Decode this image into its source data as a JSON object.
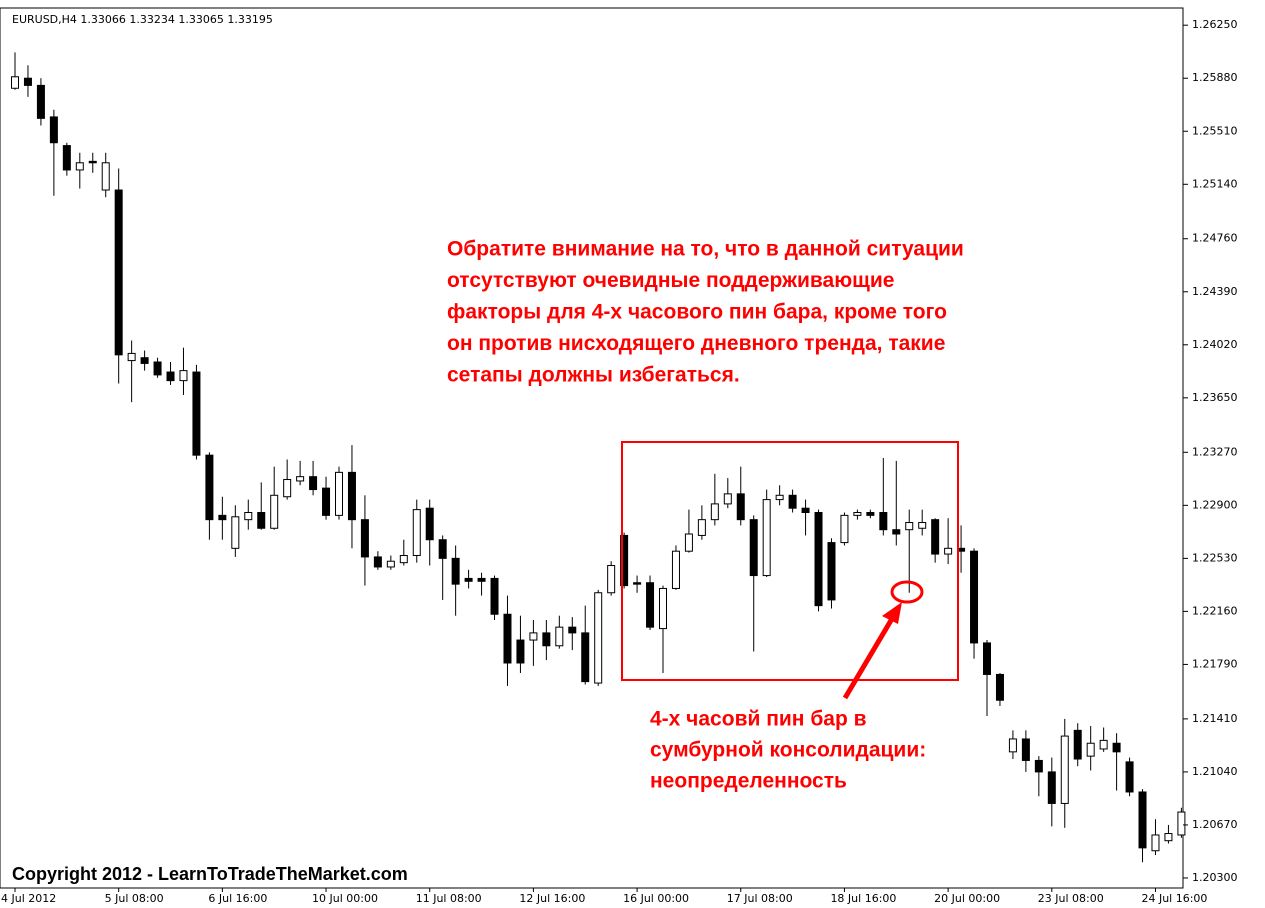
{
  "chart_data": {
    "type": "candlestick",
    "title": "EURUSD,H4  1.33066 1.33234 1.33065 1.33195",
    "categories": [
      "4 Jul 2012",
      null,
      null,
      null,
      null,
      null,
      null,
      null,
      "5 Jul 08:00",
      null,
      null,
      null,
      null,
      null,
      null,
      null,
      "6 Jul 16:00",
      null,
      null,
      null,
      null,
      null,
      null,
      null,
      "10 Jul 00:00",
      null,
      null,
      null,
      null,
      null,
      null,
      null,
      "11 Jul 08:00",
      null,
      null,
      null,
      null,
      null,
      null,
      null,
      "12 Jul 16:00",
      null,
      null,
      null,
      null,
      null,
      null,
      null,
      "16 Jul 00:00",
      null,
      null,
      null,
      null,
      null,
      null,
      null,
      "17 Jul 08:00",
      null,
      null,
      null,
      null,
      null,
      null,
      null,
      "18 Jul 16:00",
      null,
      null,
      null,
      null,
      null,
      null,
      null,
      "20 Jul 00:00",
      null,
      null,
      null,
      null,
      null,
      null,
      null,
      "23 Jul 08:00",
      null,
      null,
      null,
      null,
      null,
      null,
      null,
      "24 Jul 16:00",
      null,
      null
    ],
    "open": [
      1.2581,
      1.2588,
      1.2583,
      1.2561,
      1.2541,
      1.2524,
      1.253,
      1.251,
      1.251,
      1.2391,
      1.2393,
      1.239,
      1.2383,
      1.2377,
      1.2383,
      1.2325,
      1.2283,
      1.226,
      1.228,
      1.2285,
      1.2274,
      1.2296,
      1.2307,
      1.231,
      1.2302,
      1.2283,
      1.2313,
      1.228,
      1.2254,
      1.2247,
      1.225,
      1.2255,
      1.2288,
      1.2266,
      1.2253,
      1.2239,
      1.2239,
      1.2239,
      1.2214,
      1.2196,
      1.2196,
      1.2201,
      1.2192,
      1.2205,
      1.2201,
      1.2166,
      1.2229,
      1.2269,
      1.2236,
      1.2236,
      1.2204,
      1.2232,
      1.2258,
      1.2269,
      1.228,
      1.2291,
      1.2298,
      1.228,
      1.2241,
      1.2294,
      1.2297,
      1.2288,
      1.2285,
      1.2264,
      1.2264,
      1.2283,
      1.2285,
      1.2285,
      1.2273,
      1.2273,
      1.2274,
      1.228,
      1.2256,
      1.226,
      1.2258,
      1.2194,
      1.2172,
      1.2118,
      1.2127,
      1.2112,
      1.2104,
      1.2082,
      1.2133,
      1.2115,
      1.212,
      1.2124,
      1.2111,
      1.209,
      1.2049,
      1.2056,
      1.206
    ],
    "high": [
      1.2606,
      1.2597,
      1.2588,
      1.2566,
      1.2543,
      1.2536,
      1.2536,
      1.2536,
      1.2525,
      1.2405,
      1.2398,
      1.2393,
      1.239,
      1.24,
      1.2388,
      1.2327,
      1.2296,
      1.229,
      1.2294,
      1.2306,
      1.2317,
      1.2322,
      1.2321,
      1.2321,
      1.231,
      1.2317,
      1.2332,
      1.2297,
      1.2258,
      1.2255,
      1.2266,
      1.2294,
      1.2294,
      1.2269,
      1.2262,
      1.2245,
      1.2243,
      1.2241,
      1.2227,
      1.2213,
      1.221,
      1.221,
      1.2213,
      1.2212,
      1.222,
      1.2231,
      1.2251,
      1.2271,
      1.2241,
      1.2241,
      1.2234,
      1.2262,
      1.2287,
      1.229,
      1.2312,
      1.2309,
      1.2317,
      1.2283,
      1.2301,
      1.2304,
      1.2301,
      1.2294,
      1.2287,
      1.2267,
      1.2285,
      1.2287,
      1.2287,
      1.2323,
      1.2321,
      1.2287,
      1.2287,
      1.2281,
      1.2281,
      1.2276,
      1.226,
      1.2196,
      1.2173,
      1.2133,
      1.2133,
      1.2115,
      1.2114,
      1.2141,
      1.2138,
      1.2136,
      1.2135,
      1.2131,
      1.2114,
      1.2092,
      1.2071,
      1.2067,
      1.2079
    ],
    "low": [
      1.258,
      1.2575,
      1.2555,
      1.2506,
      1.252,
      1.2511,
      1.2522,
      1.2505,
      1.2375,
      1.2362,
      1.2384,
      1.2379,
      1.2374,
      1.2367,
      1.2322,
      1.2266,
      1.2266,
      1.2254,
      1.2273,
      1.2273,
      1.2273,
      1.2294,
      1.2304,
      1.2297,
      1.228,
      1.228,
      1.226,
      1.2234,
      1.2245,
      1.2245,
      1.2248,
      1.225,
      1.2248,
      1.2224,
      1.2213,
      1.2232,
      1.2227,
      1.221,
      1.2164,
      1.2173,
      1.2178,
      1.2182,
      1.219,
      1.2189,
      1.2165,
      1.2164,
      1.2227,
      1.2232,
      1.2229,
      1.2203,
      1.2173,
      1.2231,
      1.2257,
      1.2266,
      1.2276,
      1.2288,
      1.2276,
      1.2188,
      1.224,
      1.229,
      1.2285,
      1.2269,
      1.2216,
      1.2218,
      1.2262,
      1.228,
      1.2281,
      1.2269,
      1.2262,
      1.2229,
      1.2269,
      1.225,
      1.2249,
      1.2243,
      1.2183,
      1.2143,
      1.215,
      1.2113,
      1.2104,
      1.2087,
      1.2066,
      1.2065,
      1.2108,
      1.2105,
      1.2118,
      1.2091,
      1.2087,
      1.2041,
      1.2046,
      1.2054,
      1.2058
    ],
    "close": [
      1.2589,
      1.2583,
      1.256,
      1.2543,
      1.2524,
      1.2529,
      1.2529,
      1.2529,
      1.2395,
      1.2396,
      1.2389,
      1.2381,
      1.2377,
      1.2384,
      1.2325,
      1.228,
      1.228,
      1.2282,
      1.2285,
      1.2274,
      1.2297,
      1.2308,
      1.231,
      1.2301,
      1.2283,
      1.2313,
      1.228,
      1.2254,
      1.2247,
      1.2251,
      1.2255,
      1.2287,
      1.2266,
      1.2253,
      1.2235,
      1.2237,
      1.2237,
      1.2214,
      1.218,
      1.218,
      1.2201,
      1.2192,
      1.2205,
      1.2201,
      1.2167,
      1.2229,
      1.2248,
      1.2234,
      1.2235,
      1.2205,
      1.2232,
      1.2258,
      1.227,
      1.228,
      1.2291,
      1.2298,
      1.228,
      1.2241,
      1.2294,
      1.2297,
      1.2288,
      1.2285,
      1.222,
      1.2224,
      1.2283,
      1.2285,
      1.2283,
      1.2273,
      1.227,
      1.2278,
      1.2278,
      1.2256,
      1.226,
      1.2258,
      1.2194,
      1.2172,
      1.2154,
      1.2127,
      1.2112,
      1.2104,
      1.2082,
      1.2129,
      1.2113,
      1.2124,
      1.2126,
      1.2118,
      1.209,
      1.2051,
      1.206,
      1.2061,
      1.2076
    ],
    "up_color": "#ffffff",
    "down_color": "#000000",
    "ylim": [
      1.2023,
      1.2637
    ],
    "yticks": [
      {
        "value": 1.2625,
        "label": "1.26250"
      },
      {
        "value": 1.2588,
        "label": "1.25880"
      },
      {
        "value": 1.2551,
        "label": "1.25510"
      },
      {
        "value": 1.2514,
        "label": "1.25140"
      },
      {
        "value": 1.2476,
        "label": "1.24760"
      },
      {
        "value": 1.2439,
        "label": "1.24390"
      },
      {
        "value": 1.2402,
        "label": "1.24020"
      },
      {
        "value": 1.2365,
        "label": "1.23650"
      },
      {
        "value": 1.2327,
        "label": "1.23270"
      },
      {
        "value": 1.229,
        "label": "1.22900"
      },
      {
        "value": 1.2253,
        "label": "1.22530"
      },
      {
        "value": 1.2216,
        "label": "1.22160"
      },
      {
        "value": 1.2179,
        "label": "1.21790"
      },
      {
        "value": 1.2141,
        "label": "1.21410"
      },
      {
        "value": 1.2104,
        "label": "1.21040"
      },
      {
        "value": 1.2067,
        "label": "1.20670"
      },
      {
        "value": 1.203,
        "label": "1.20300"
      }
    ],
    "grid": false,
    "note": [
      "Обратите внимание на то, что в данной ситуации",
      "отсутствуют очевидные поддерживающие",
      "факторы для 4-х часового пин бара, кроме того",
      "он против нисходящего дневного тренда, такие",
      "сетапы должны избегаться."
    ],
    "callout": [
      "4-х часовй пин бар в",
      "сумбурной консолидации:",
      "неопределенность"
    ],
    "copyright": "Copyright 2012 - LearnToTradeTheMarket.com"
  }
}
